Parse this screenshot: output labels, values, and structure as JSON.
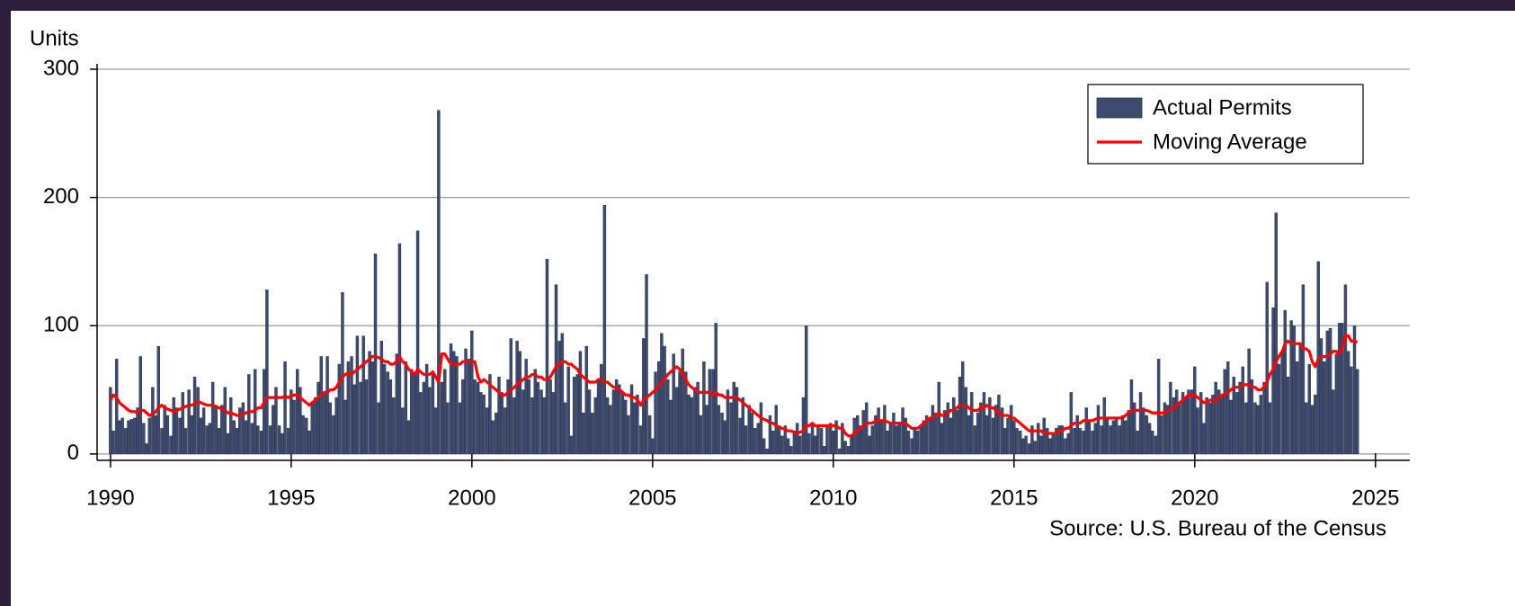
{
  "chart_data": {
    "type": "bar",
    "y_label": "Units",
    "source": "Source: U.S. Bureau of the Census",
    "xlim": [
      1989.63,
      2025.95
    ],
    "ylim": [
      -5,
      300
    ],
    "xticks": [
      1990,
      1995,
      2000,
      2005,
      2010,
      2015,
      2020,
      2025
    ],
    "yticks": [
      0,
      100,
      200,
      300
    ],
    "grid": true,
    "legend": "upper right",
    "x": [
      1990,
      1990.08,
      1990.17,
      1990.25,
      1990.33,
      1990.42,
      1990.5,
      1990.58,
      1990.67,
      1990.75,
      1990.83,
      1990.92,
      1991,
      1991.08,
      1991.17,
      1991.25,
      1991.33,
      1991.42,
      1991.5,
      1991.58,
      1991.67,
      1991.75,
      1991.83,
      1991.92,
      1992,
      1992.08,
      1992.17,
      1992.25,
      1992.33,
      1992.42,
      1992.5,
      1992.58,
      1992.67,
      1992.75,
      1992.83,
      1992.92,
      1993,
      1993.08,
      1993.17,
      1993.25,
      1993.33,
      1993.42,
      1993.5,
      1993.58,
      1993.67,
      1993.75,
      1993.83,
      1993.92,
      1994,
      1994.08,
      1994.17,
      1994.25,
      1994.33,
      1994.42,
      1994.5,
      1994.58,
      1994.67,
      1994.75,
      1994.83,
      1994.92,
      1995,
      1995.08,
      1995.17,
      1995.25,
      1995.33,
      1995.42,
      1995.5,
      1995.58,
      1995.67,
      1995.75,
      1995.83,
      1995.92,
      1996,
      1996.08,
      1996.17,
      1996.25,
      1996.33,
      1996.42,
      1996.5,
      1996.58,
      1996.67,
      1996.75,
      1996.83,
      1996.92,
      1997,
      1997.08,
      1997.17,
      1997.25,
      1997.33,
      1997.42,
      1997.5,
      1997.58,
      1997.67,
      1997.75,
      1997.83,
      1997.92,
      1998,
      1998.08,
      1998.17,
      1998.25,
      1998.33,
      1998.42,
      1998.5,
      1998.58,
      1998.67,
      1998.75,
      1998.83,
      1998.92,
      1999,
      1999.08,
      1999.17,
      1999.25,
      1999.33,
      1999.42,
      1999.5,
      1999.58,
      1999.67,
      1999.75,
      1999.83,
      1999.92,
      2000,
      2000.08,
      2000.17,
      2000.25,
      2000.33,
      2000.42,
      2000.5,
      2000.58,
      2000.67,
      2000.75,
      2000.83,
      2000.92,
      2001,
      2001.08,
      2001.17,
      2001.25,
      2001.33,
      2001.42,
      2001.5,
      2001.58,
      2001.67,
      2001.75,
      2001.83,
      2001.92,
      2002,
      2002.08,
      2002.17,
      2002.25,
      2002.33,
      2002.42,
      2002.5,
      2002.58,
      2002.67,
      2002.75,
      2002.83,
      2002.92,
      2003,
      2003.08,
      2003.17,
      2003.25,
      2003.33,
      2003.42,
      2003.5,
      2003.58,
      2003.67,
      2003.75,
      2003.83,
      2003.92,
      2004,
      2004.08,
      2004.17,
      2004.25,
      2004.33,
      2004.42,
      2004.5,
      2004.58,
      2004.67,
      2004.75,
      2004.83,
      2004.92,
      2005,
      2005.08,
      2005.17,
      2005.25,
      2005.33,
      2005.42,
      2005.5,
      2005.58,
      2005.67,
      2005.75,
      2005.83,
      2005.92,
      2006,
      2006.08,
      2006.17,
      2006.25,
      2006.33,
      2006.42,
      2006.5,
      2006.58,
      2006.67,
      2006.75,
      2006.83,
      2006.92,
      2007,
      2007.08,
      2007.17,
      2007.25,
      2007.33,
      2007.42,
      2007.5,
      2007.58,
      2007.67,
      2007.75,
      2007.83,
      2007.92,
      2008,
      2008.08,
      2008.17,
      2008.25,
      2008.33,
      2008.42,
      2008.5,
      2008.58,
      2008.67,
      2008.75,
      2008.83,
      2008.92,
      2009,
      2009.08,
      2009.17,
      2009.25,
      2009.33,
      2009.42,
      2009.5,
      2009.58,
      2009.67,
      2009.75,
      2009.83,
      2009.92,
      2010,
      2010.08,
      2010.17,
      2010.25,
      2010.33,
      2010.42,
      2010.5,
      2010.58,
      2010.67,
      2010.75,
      2010.83,
      2010.92,
      2011,
      2011.08,
      2011.17,
      2011.25,
      2011.33,
      2011.42,
      2011.5,
      2011.58,
      2011.67,
      2011.75,
      2011.83,
      2011.92,
      2012,
      2012.08,
      2012.17,
      2012.25,
      2012.33,
      2012.42,
      2012.5,
      2012.58,
      2012.67,
      2012.75,
      2012.83,
      2012.92,
      2013,
      2013.08,
      2013.17,
      2013.25,
      2013.33,
      2013.42,
      2013.5,
      2013.58,
      2013.67,
      2013.75,
      2013.83,
      2013.92,
      2014,
      2014.08,
      2014.17,
      2014.25,
      2014.33,
      2014.42,
      2014.5,
      2014.58,
      2014.67,
      2014.75,
      2014.83,
      2014.92,
      2015,
      2015.08,
      2015.17,
      2015.25,
      2015.33,
      2015.42,
      2015.5,
      2015.58,
      2015.67,
      2015.75,
      2015.83,
      2015.92,
      2016,
      2016.08,
      2016.17,
      2016.25,
      2016.33,
      2016.42,
      2016.5,
      2016.58,
      2016.67,
      2016.75,
      2016.83,
      2016.92,
      2017,
      2017.08,
      2017.17,
      2017.25,
      2017.33,
      2017.42,
      2017.5,
      2017.58,
      2017.67,
      2017.75,
      2017.83,
      2017.92,
      2018,
      2018.08,
      2018.17,
      2018.25,
      2018.33,
      2018.42,
      2018.5,
      2018.58,
      2018.67,
      2018.75,
      2018.83,
      2018.92,
      2019,
      2019.08,
      2019.17,
      2019.25,
      2019.33,
      2019.42,
      2019.5,
      2019.58,
      2019.67,
      2019.75,
      2019.83,
      2019.92,
      2020,
      2020.08,
      2020.17,
      2020.25,
      2020.33,
      2020.42,
      2020.5,
      2020.58,
      2020.67,
      2020.75,
      2020.83,
      2020.92,
      2021,
      2021.08,
      2021.17,
      2021.25,
      2021.33,
      2021.42,
      2021.5,
      2021.58,
      2021.67,
      2021.75,
      2021.83,
      2021.92,
      2022,
      2022.08,
      2022.17,
      2022.25,
      2022.33,
      2022.42,
      2022.5,
      2022.58,
      2022.67,
      2022.75,
      2022.83,
      2022.92,
      2023,
      2023.08,
      2023.17,
      2023.25,
      2023.33,
      2023.42,
      2023.5,
      2023.58,
      2023.67,
      2023.75,
      2023.83,
      2023.92,
      2024,
      2024.08,
      2024.17,
      2024.25,
      2024.33,
      2024.42,
      2024.5
    ],
    "series": [
      {
        "name": "Actual Permits",
        "type": "bar",
        "color": "#3e4a6e",
        "values": [
          52,
          18,
          74,
          26,
          28,
          20,
          26,
          27,
          28,
          36,
          76,
          24,
          8,
          28,
          52,
          30,
          84,
          20,
          38,
          30,
          14,
          44,
          36,
          28,
          48,
          20,
          50,
          30,
          60,
          52,
          28,
          36,
          22,
          24,
          56,
          38,
          20,
          38,
          52,
          16,
          44,
          26,
          20,
          36,
          40,
          26,
          62,
          24,
          66,
          22,
          18,
          66,
          128,
          22,
          38,
          52,
          22,
          16,
          72,
          20,
          50,
          42,
          66,
          52,
          30,
          28,
          18,
          40,
          44,
          56,
          76,
          48,
          76,
          40,
          30,
          44,
          70,
          126,
          42,
          72,
          76,
          54,
          92,
          56,
          92,
          58,
          80,
          72,
          156,
          40,
          88,
          70,
          64,
          58,
          44,
          78,
          164,
          36,
          72,
          26,
          66,
          64,
          174,
          48,
          56,
          70,
          52,
          62,
          36,
          268,
          56,
          66,
          40,
          86,
          80,
          76,
          40,
          58,
          82,
          74,
          96,
          58,
          56,
          48,
          46,
          36,
          62,
          26,
          32,
          60,
          48,
          36,
          58,
          90,
          44,
          88,
          80,
          50,
          74,
          58,
          44,
          66,
          56,
          50,
          44,
          152,
          58,
          48,
          132,
          88,
          94,
          40,
          68,
          14,
          60,
          62,
          80,
          32,
          84,
          50,
          32,
          44,
          58,
          70,
          194,
          44,
          38,
          50,
          58,
          54,
          48,
          42,
          30,
          54,
          40,
          46,
          22,
          90,
          140,
          30,
          12,
          64,
          72,
          94,
          84,
          58,
          42,
          78,
          52,
          64,
          82,
          64,
          46,
          44,
          52,
          56,
          30,
          72,
          38,
          66,
          66,
          102,
          38,
          32,
          26,
          50,
          40,
          56,
          52,
          28,
          44,
          22,
          38,
          32,
          20,
          24,
          40,
          12,
          4,
          30,
          18,
          38,
          22,
          14,
          22,
          12,
          6,
          18,
          24,
          14,
          44,
          100,
          16,
          24,
          14,
          22,
          20,
          6,
          22,
          24,
          18,
          26,
          4,
          24,
          10,
          6,
          14,
          28,
          30,
          22,
          34,
          40,
          14,
          22,
          30,
          36,
          26,
          38,
          18,
          24,
          32,
          22,
          24,
          36,
          28,
          18,
          12,
          20,
          18,
          22,
          26,
          30,
          28,
          38,
          32,
          56,
          24,
          34,
          40,
          28,
          44,
          34,
          60,
          72,
          52,
          30,
          48,
          22,
          32,
          40,
          48,
          30,
          44,
          28,
          38,
          46,
          36,
          20,
          28,
          38,
          26,
          20,
          18,
          12,
          14,
          8,
          22,
          10,
          24,
          14,
          28,
          20,
          12,
          16,
          20,
          22,
          22,
          12,
          16,
          48,
          20,
          30,
          20,
          18,
          36,
          26,
          18,
          24,
          38,
          22,
          44,
          28,
          22,
          26,
          28,
          22,
          30,
          26,
          34,
          58,
          40,
          18,
          48,
          36,
          30,
          24,
          18,
          14,
          74,
          30,
          40,
          38,
          56,
          44,
          50,
          40,
          48,
          44,
          50,
          50,
          68,
          36,
          48,
          24,
          44,
          40,
          46,
          56,
          50,
          46,
          66,
          72,
          42,
          60,
          48,
          56,
          68,
          40,
          82,
          58,
          40,
          38,
          46,
          56,
          134,
          40,
          114,
          188,
          70,
          80,
          112,
          60,
          104,
          100,
          72,
          86,
          132,
          40,
          70,
          38,
          46,
          150,
          90,
          72,
          96,
          98,
          50,
          78,
          102,
          102,
          132,
          80,
          68,
          100,
          66
        ]
      },
      {
        "name": "Moving Average",
        "type": "line",
        "color": "#ff0000",
        "values": [
          42,
          46,
          44,
          40,
          38,
          36,
          34,
          33,
          33,
          32,
          34,
          34,
          32,
          30,
          31,
          33,
          36,
          38,
          36,
          35,
          34,
          33,
          34,
          35,
          36,
          37,
          38,
          38,
          39,
          41,
          40,
          39,
          38,
          38,
          38,
          37,
          36,
          35,
          34,
          32,
          32,
          31,
          30,
          30,
          31,
          32,
          33,
          33,
          34,
          36,
          36,
          40,
          44,
          44,
          44,
          44,
          44,
          44,
          45,
          44,
          45,
          46,
          46,
          44,
          42,
          40,
          38,
          40,
          42,
          44,
          46,
          48,
          48,
          50,
          50,
          52,
          56,
          60,
          62,
          63,
          62,
          64,
          66,
          68,
          70,
          72,
          74,
          76,
          76,
          75,
          74,
          72,
          72,
          70,
          70,
          72,
          76,
          72,
          70,
          66,
          64,
          62,
          66,
          64,
          62,
          62,
          62,
          64,
          60,
          56,
          78,
          78,
          74,
          70,
          70,
          70,
          70,
          72,
          72,
          72,
          72,
          72,
          60,
          56,
          58,
          56,
          54,
          52,
          50,
          48,
          46,
          46,
          48,
          50,
          52,
          54,
          56,
          58,
          60,
          60,
          62,
          62,
          60,
          60,
          58,
          58,
          60,
          64,
          68,
          70,
          72,
          72,
          70,
          70,
          68,
          66,
          62,
          60,
          58,
          56,
          56,
          56,
          58,
          58,
          56,
          56,
          54,
          52,
          52,
          50,
          48,
          46,
          46,
          44,
          44,
          42,
          38,
          42,
          44,
          46,
          48,
          50,
          52,
          56,
          58,
          62,
          64,
          66,
          68,
          66,
          62,
          58,
          54,
          52,
          50,
          48,
          48,
          48,
          48,
          48,
          46,
          48,
          46,
          46,
          44,
          44,
          44,
          44,
          44,
          42,
          40,
          38,
          36,
          34,
          32,
          30,
          28,
          27,
          26,
          24,
          24,
          22,
          21,
          20,
          19,
          18,
          18,
          17,
          16,
          17,
          18,
          22,
          22,
          24,
          22,
          22,
          22,
          22,
          22,
          22,
          22,
          22,
          20,
          20,
          16,
          14,
          14,
          16,
          18,
          20,
          22,
          24,
          24,
          24,
          26,
          26,
          26,
          26,
          25,
          24,
          24,
          24,
          24,
          24,
          24,
          22,
          20,
          20,
          20,
          22,
          24,
          26,
          28,
          28,
          30,
          32,
          30,
          30,
          32,
          34,
          34,
          36,
          38,
          38,
          38,
          36,
          34,
          34,
          34,
          36,
          36,
          38,
          36,
          36,
          34,
          32,
          30,
          30,
          30,
          28,
          28,
          26,
          24,
          22,
          20,
          18,
          18,
          18,
          18,
          18,
          16,
          16,
          16,
          16,
          16,
          18,
          18,
          20,
          20,
          22,
          24,
          24,
          24,
          26,
          26,
          26,
          26,
          27,
          28,
          28,
          28,
          28,
          28,
          28,
          28,
          28,
          28,
          30,
          32,
          34,
          34,
          34,
          34,
          34,
          34,
          33,
          32,
          32,
          32,
          32,
          32,
          34,
          34,
          36,
          38,
          40,
          42,
          44,
          46,
          46,
          46,
          44,
          42,
          40,
          40,
          42,
          42,
          42,
          44,
          46,
          46,
          48,
          50,
          52,
          52,
          52,
          54,
          54,
          54,
          52,
          52,
          50,
          50,
          52,
          56,
          62,
          66,
          72,
          76,
          80,
          86,
          88,
          86,
          86,
          86,
          86,
          82,
          82,
          80,
          72,
          68,
          74,
          76,
          76,
          76,
          78,
          80,
          80,
          78,
          82,
          92,
          92,
          88,
          88,
          87
        ]
      }
    ]
  }
}
